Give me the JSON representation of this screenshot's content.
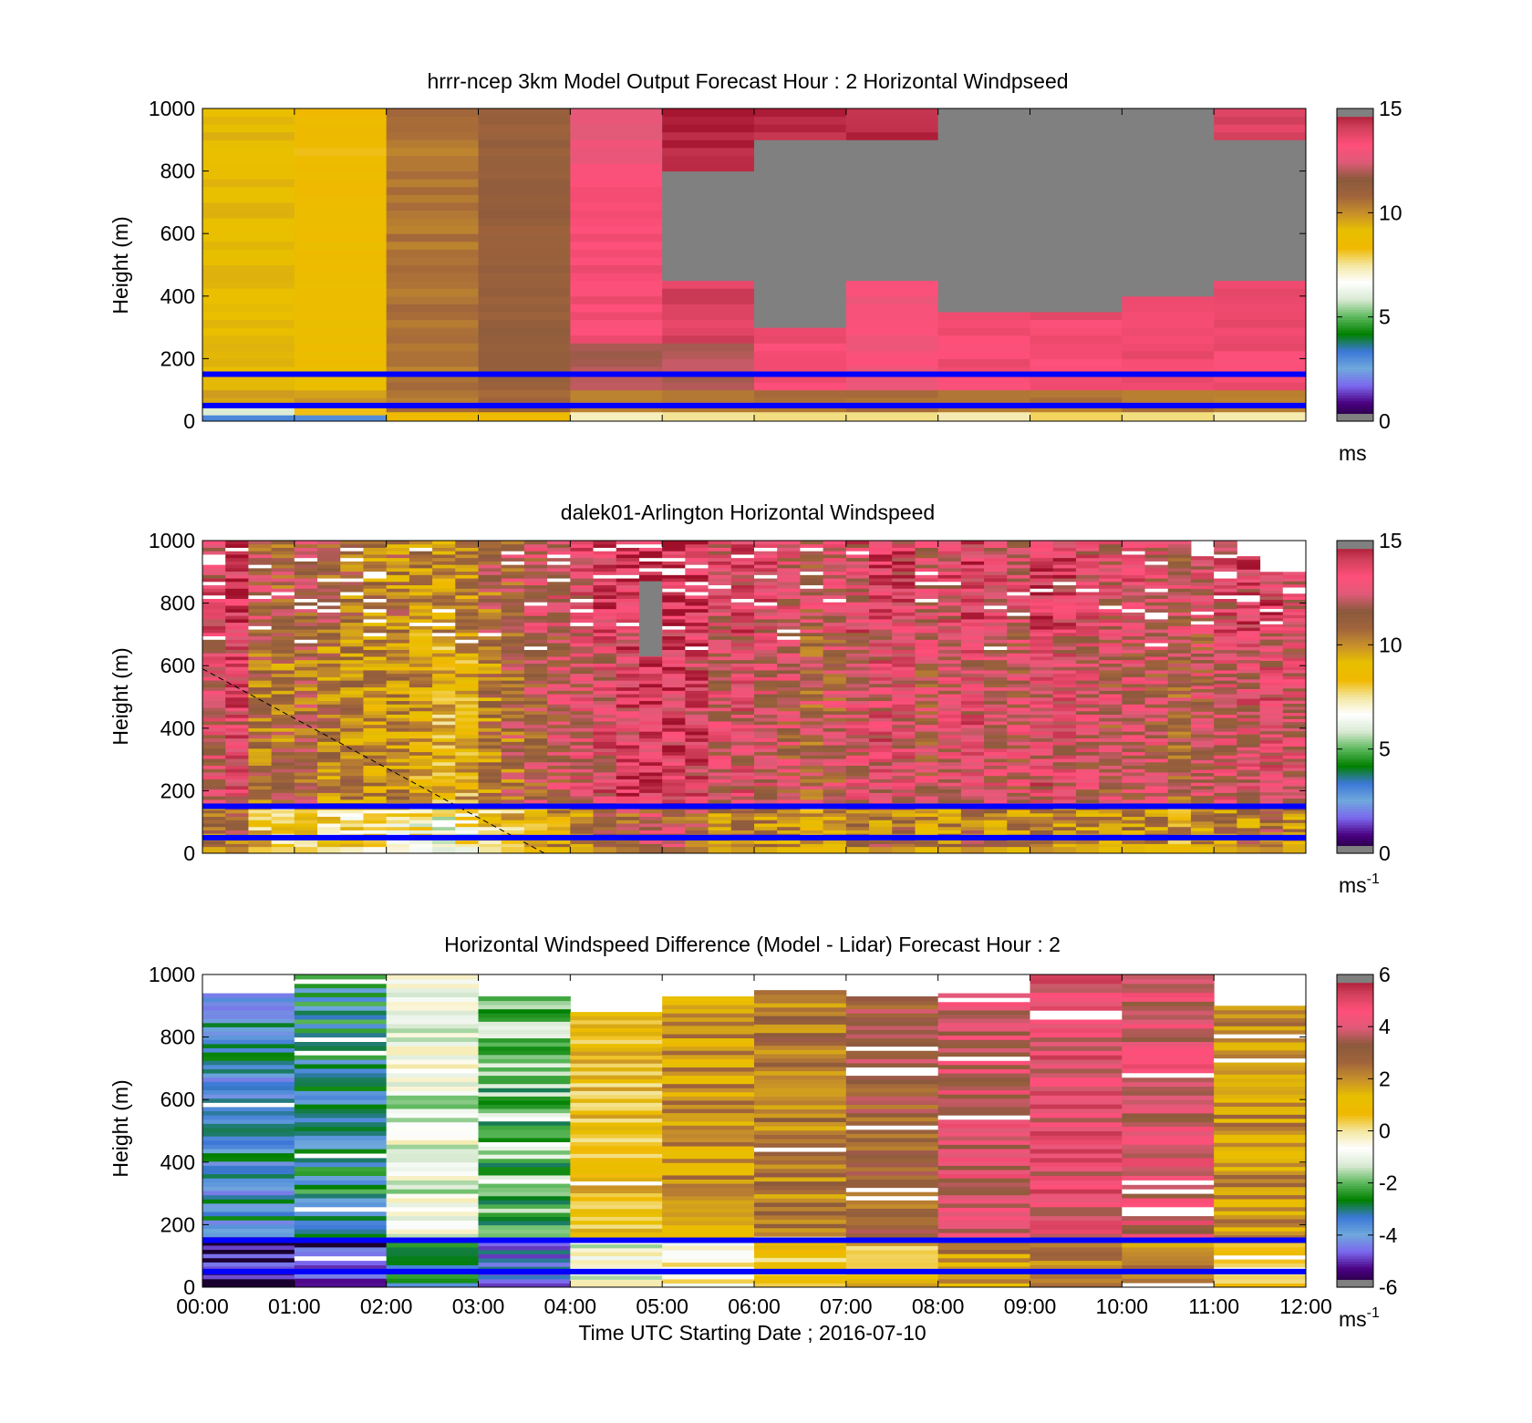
{
  "figure": {
    "x_tick_labels": [
      "00:00",
      "01:00",
      "02:00",
      "03:00",
      "04:00",
      "05:00",
      "06:00",
      "07:00",
      "08:00",
      "09:00",
      "10:00",
      "11:00",
      "12:00"
    ],
    "xlabel": "Time UTC  Starting Date ; 2016-07-10"
  },
  "colors": {
    "low_white": "#ffffff",
    "grey_missing": "#808080",
    "blue_lines": "#0000ff",
    "colormap": [
      "#1a0030",
      "#4b0082",
      "#7b68ee",
      "#6fa8dc",
      "#3c78d8",
      "#008000",
      "#5cb85c",
      "#d9ead3",
      "#ffffff",
      "#f3e7a1",
      "#f0b800",
      "#e8c000",
      "#c8902a",
      "#a0643c",
      "#8b5a3c",
      "#e05a78",
      "#ff4f7a",
      "#d0405a",
      "#a0102a",
      "#808080"
    ]
  },
  "chart_data": [
    {
      "type": "heatmap",
      "title": "hrrr-ncep 3km Model Output   Forecast Hour : 2 Horizontal Windpseed",
      "xlabel": "",
      "ylabel": "Height (m)",
      "ylim": [
        0,
        1000
      ],
      "y_ticks": [
        "0",
        "200",
        "400",
        "600",
        "800",
        "1000"
      ],
      "x_range_hours": [
        0,
        12
      ],
      "colorbar": {
        "range": [
          0,
          15
        ],
        "ticks": [
          "0",
          "5",
          "10",
          "15"
        ],
        "unit": "ms"
      },
      "hline_heights": [
        50,
        150
      ],
      "time_bins": [
        0,
        1,
        2,
        3,
        4,
        5,
        6,
        7,
        8,
        9,
        10,
        11
      ],
      "columns": [
        {
          "hour": 0,
          "cells": [
            [
              0,
              20,
              3
            ],
            [
              20,
              50,
              6
            ],
            [
              50,
              100,
              9.5
            ],
            [
              100,
              1000,
              9.2
            ]
          ]
        },
        {
          "hour": 1,
          "cells": [
            [
              0,
              20,
              3
            ],
            [
              20,
              50,
              8
            ],
            [
              50,
              100,
              9.8
            ],
            [
              100,
              700,
              8.8
            ],
            [
              700,
              1000,
              8.5
            ]
          ]
        },
        {
          "hour": 2,
          "cells": [
            [
              0,
              30,
              8.5
            ],
            [
              30,
              100,
              10.5
            ],
            [
              100,
              1000,
              10.5
            ]
          ]
        },
        {
          "hour": 3,
          "cells": [
            [
              0,
              30,
              8.5
            ],
            [
              30,
              100,
              11
            ],
            [
              100,
              1000,
              11.2
            ]
          ]
        },
        {
          "hour": 4,
          "cells": [
            [
              0,
              30,
              7.5
            ],
            [
              30,
              100,
              10.5
            ],
            [
              100,
              250,
              12
            ],
            [
              250,
              800,
              13.4
            ],
            [
              800,
              900,
              13
            ],
            [
              900,
              1000,
              12.6
            ]
          ]
        },
        {
          "hour": 5,
          "cells": [
            [
              0,
              30,
              7.5
            ],
            [
              30,
              100,
              10.5
            ],
            [
              100,
              250,
              12
            ],
            [
              250,
              450,
              14
            ],
            [
              450,
              1000,
              16
            ],
            [
              800,
              1000,
              14.6
            ]
          ]
        },
        {
          "hour": 6,
          "cells": [
            [
              0,
              30,
              7.5
            ],
            [
              30,
              100,
              10.5
            ],
            [
              100,
              300,
              13.5
            ],
            [
              300,
              1000,
              16
            ],
            [
              900,
              1000,
              14.6
            ]
          ]
        },
        {
          "hour": 7,
          "cells": [
            [
              0,
              30,
              7.5
            ],
            [
              30,
              100,
              10.5
            ],
            [
              100,
              450,
              13
            ],
            [
              450,
              1000,
              16
            ],
            [
              900,
              1000,
              14.6
            ]
          ]
        },
        {
          "hour": 8,
          "cells": [
            [
              0,
              30,
              7.5
            ],
            [
              30,
              100,
              10.5
            ],
            [
              100,
              350,
              13.5
            ],
            [
              350,
              1000,
              16
            ]
          ]
        },
        {
          "hour": 9,
          "cells": [
            [
              0,
              30,
              7.8
            ],
            [
              30,
              100,
              10.5
            ],
            [
              100,
              350,
              13.5
            ],
            [
              350,
              1000,
              16
            ]
          ]
        },
        {
          "hour": 10,
          "cells": [
            [
              0,
              30,
              7.5
            ],
            [
              30,
              100,
              10.5
            ],
            [
              100,
              400,
              13.5
            ],
            [
              400,
              1000,
              16
            ]
          ]
        },
        {
          "hour": 11,
          "cells": [
            [
              0,
              30,
              7.5
            ],
            [
              30,
              100,
              10.5
            ],
            [
              100,
              450,
              13.5
            ],
            [
              450,
              900,
              16
            ],
            [
              900,
              1000,
              14
            ]
          ]
        }
      ]
    },
    {
      "type": "heatmap",
      "title": "dalek01-Arlington  Horizontal Windspeed",
      "xlabel": "",
      "ylabel": "Height (m)",
      "ylim": [
        0,
        1000
      ],
      "y_ticks": [
        "0",
        "200",
        "400",
        "600",
        "800",
        "1000"
      ],
      "x_range_hours": [
        0,
        12
      ],
      "colorbar": {
        "range": [
          0,
          15
        ],
        "ticks": [
          "0",
          "5",
          "10",
          "15"
        ],
        "unit": "ms-1"
      },
      "hline_heights": [
        50,
        150
      ],
      "time_bins": [
        0.0,
        0.25,
        0.5,
        0.75,
        1.0,
        1.25,
        1.5,
        1.75,
        2.0,
        2.25,
        2.5,
        2.75,
        3.0,
        3.25,
        3.5,
        3.75,
        4.0,
        4.25,
        4.5,
        4.75,
        5.0,
        5.25,
        5.5,
        5.75,
        6.0,
        6.25,
        6.5,
        6.75,
        7.0,
        7.25,
        7.5,
        7.75,
        8.0,
        8.25,
        8.5,
        8.75,
        9.0,
        9.25,
        9.5,
        9.75,
        10.0,
        10.25,
        10.5,
        10.75,
        11.0,
        11.25,
        11.5,
        11.75
      ],
      "column_mean_speed": [
        12.5,
        13.2,
        11,
        10.8,
        11,
        10.5,
        10.2,
        9.8,
        10,
        9.5,
        9,
        9.2,
        10.5,
        11,
        11.5,
        12,
        12.5,
        13,
        13.5,
        14,
        13.8,
        13.5,
        12.5,
        12.8,
        12.5,
        12,
        11.5,
        11.8,
        12.5,
        13,
        12.8,
        12,
        12.5,
        13,
        12.5,
        12.2,
        13,
        12.8,
        12.5,
        12,
        12.3,
        12,
        11.5,
        12,
        12.5,
        12.8,
        13,
        12.5
      ],
      "column_top_height": [
        1000,
        1000,
        1000,
        1000,
        1000,
        1000,
        1000,
        1000,
        1000,
        1000,
        1000,
        1000,
        1000,
        1000,
        1000,
        1000,
        1000,
        1000,
        1000,
        1000,
        1000,
        1000,
        1000,
        1000,
        1000,
        1000,
        1000,
        1000,
        1000,
        1000,
        1000,
        1000,
        1000,
        1000,
        1000,
        1000,
        1000,
        1000,
        1000,
        1000,
        1000,
        1000,
        1000,
        950,
        1000,
        950,
        900,
        900
      ],
      "annotation_line": {
        "from_hour": 0,
        "from_height": 590,
        "to_hour": 3.72,
        "to_height": 0
      }
    },
    {
      "type": "heatmap",
      "title": "Horizontal Windspeed Difference (Model - Lidar) Forecast Hour : 2",
      "xlabel": "Time UTC  Starting Date ; 2016-07-10",
      "ylabel": "Height (m)",
      "ylim": [
        0,
        1000
      ],
      "y_ticks": [
        "0",
        "200",
        "400",
        "600",
        "800",
        "1000"
      ],
      "x_tick_labels": [
        "00:00",
        "01:00",
        "02:00",
        "03:00",
        "04:00",
        "05:00",
        "06:00",
        "07:00",
        "08:00",
        "09:00",
        "10:00",
        "11:00",
        "12:00"
      ],
      "x_range_hours": [
        0,
        12
      ],
      "colorbar": {
        "range": [
          -6,
          6
        ],
        "ticks": [
          "-6",
          "-4",
          "-2",
          "0",
          "2",
          "4",
          "6"
        ],
        "unit": "ms-1"
      },
      "hline_heights": [
        50,
        150
      ],
      "time_bins": [
        0,
        1,
        2,
        3,
        4,
        5,
        6,
        7,
        8,
        9,
        10,
        11
      ],
      "column_mean_difference": [
        -3.5,
        -3,
        -1,
        -2,
        1,
        1.8,
        2.5,
        3,
        4,
        4.5,
        4,
        2
      ],
      "column_top_height": [
        940,
        1000,
        1000,
        930,
        880,
        930,
        950,
        930,
        940,
        1000,
        1000,
        900
      ]
    }
  ]
}
